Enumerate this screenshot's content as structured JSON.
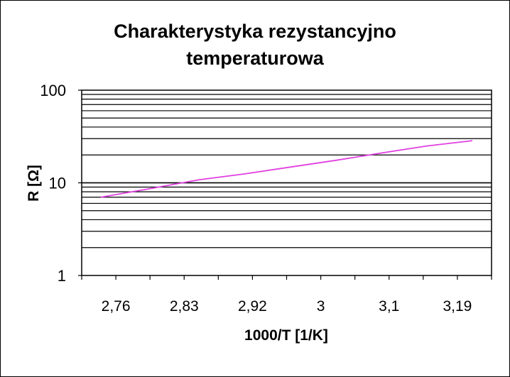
{
  "chart_data": {
    "type": "line",
    "title": "Charakterystyka rezystancyjno temperaturowa",
    "title_lines": [
      "Charakterystyka rezystancyjno",
      "temperaturowa"
    ],
    "xlabel": "1000/T [1/K]",
    "ylabel": "R [Ω]",
    "x_ticks": [
      "2,76",
      "2,83",
      "2,92",
      "3",
      "3,1",
      "3,19"
    ],
    "y_ticks": [
      "1",
      "10",
      "100"
    ],
    "y_scale": "log",
    "ylim": [
      1,
      100
    ],
    "grid": "horizontal",
    "legend": "none",
    "series": [
      {
        "color": "#e040e0",
        "x": [
          2.73,
          2.8,
          2.86,
          2.92,
          2.98,
          3.04,
          3.1,
          3.16,
          3.22
        ],
        "y": [
          7.0,
          8.8,
          10.8,
          12.5,
          14.8,
          17.5,
          21.0,
          25.0,
          28.5
        ]
      }
    ]
  }
}
